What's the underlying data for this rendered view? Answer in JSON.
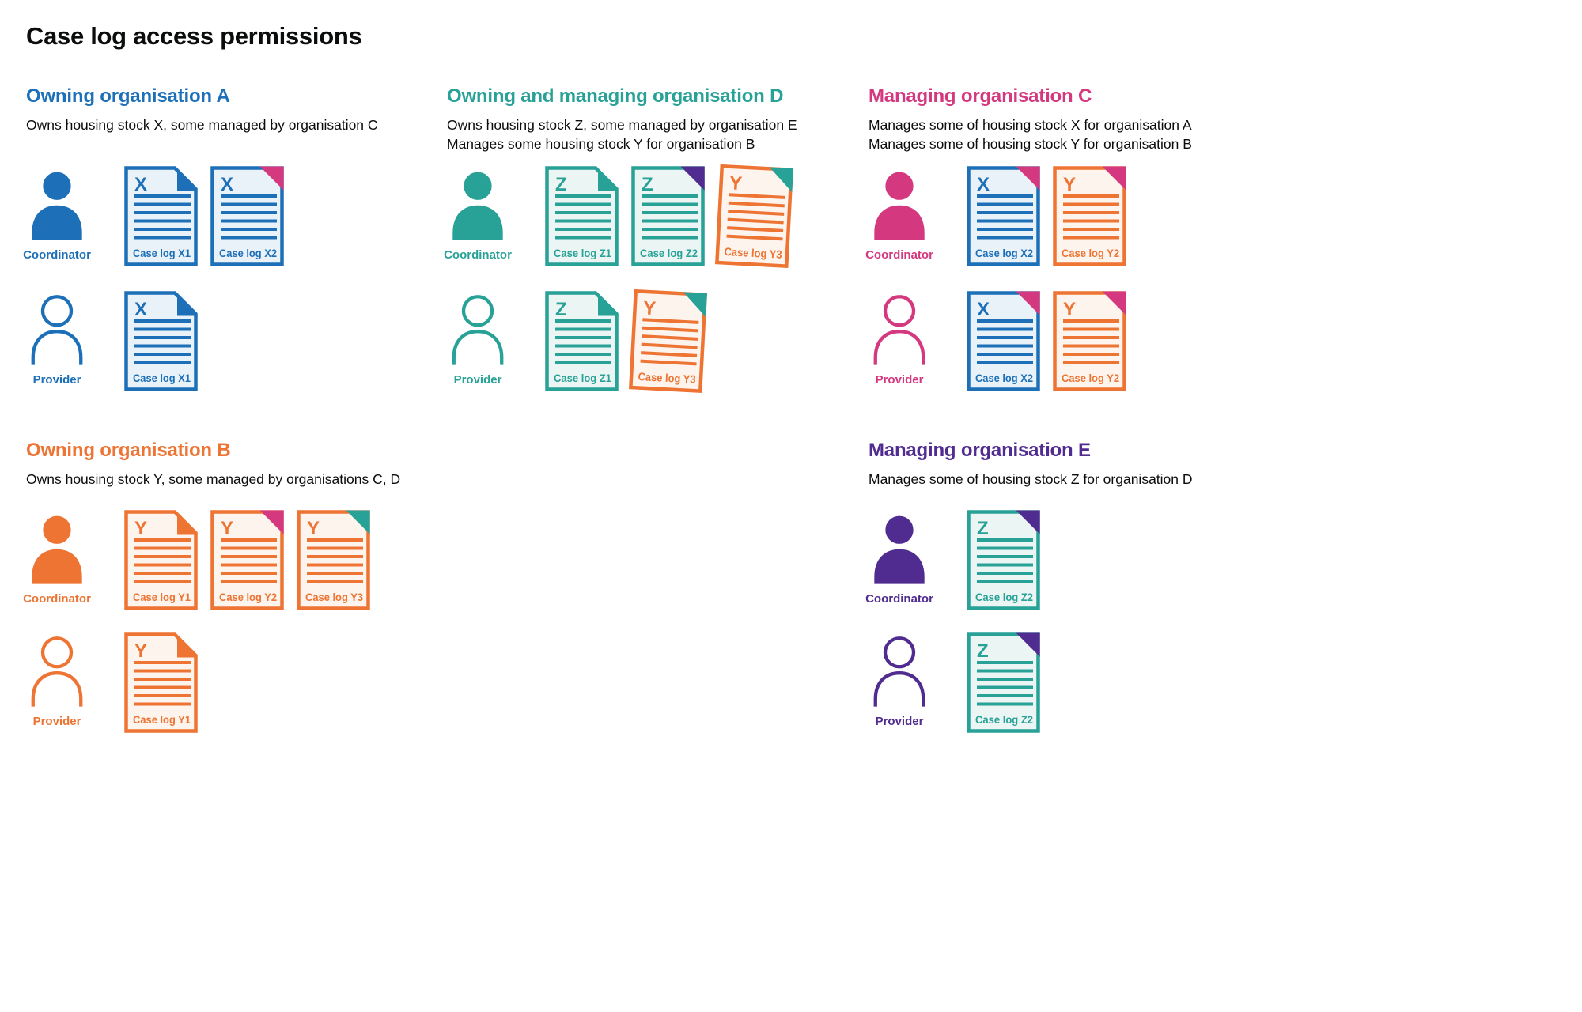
{
  "title": "Case log access permissions",
  "palette": {
    "blue": {
      "main": "#1d70b8",
      "tint": "#eaf2f9"
    },
    "teal": {
      "main": "#28a197",
      "tint": "#ebf5f3"
    },
    "orange": {
      "main": "#ee7434",
      "tint": "#fdf4ed"
    },
    "pink": {
      "main": "#d4387f",
      "tint": "#fbebf2"
    },
    "purple": {
      "main": "#512c90",
      "tint": "#eeeaf5"
    },
    "text": "#0b0c0c"
  },
  "sections": [
    {
      "id": "owning-organisation-a",
      "heading": "Owning organisation A",
      "color": "blue",
      "column": 0,
      "band": 0,
      "description_lines": [
        "Owns housing stock X, some managed by organisation C"
      ],
      "rows": [
        {
          "role": "Coordinator",
          "person": "solid",
          "docs": [
            {
              "letter": "X",
              "label": "Case log X1",
              "doc_color": "blue",
              "fold_color": "blue",
              "tilt": 0
            },
            {
              "letter": "X",
              "label": "Case log X2",
              "doc_color": "blue",
              "fold_color": "pink",
              "tilt": 0
            }
          ]
        },
        {
          "role": "Provider",
          "person": "outline",
          "docs": [
            {
              "letter": "X",
              "label": "Case log X1",
              "doc_color": "blue",
              "fold_color": "blue",
              "tilt": 0
            }
          ]
        }
      ]
    },
    {
      "id": "owning-and-managing-organisation-d",
      "heading": "Owning and managing organisation D",
      "color": "teal",
      "column": 1,
      "band": 0,
      "description_lines": [
        "Owns housing stock Z, some managed by organisation E",
        "Manages some housing stock Y for organisation B"
      ],
      "rows": [
        {
          "role": "Coordinator",
          "person": "solid",
          "docs": [
            {
              "letter": "Z",
              "label": "Case log Z1",
              "doc_color": "teal",
              "fold_color": "teal",
              "tilt": 0
            },
            {
              "letter": "Z",
              "label": "Case log Z2",
              "doc_color": "teal",
              "fold_color": "purple",
              "tilt": 0
            },
            {
              "letter": "Y",
              "label": "Case log Y3",
              "doc_color": "orange",
              "fold_color": "teal",
              "tilt": 3
            }
          ]
        },
        {
          "role": "Provider",
          "person": "outline",
          "docs": [
            {
              "letter": "Z",
              "label": "Case log Z1",
              "doc_color": "teal",
              "fold_color": "teal",
              "tilt": 0
            },
            {
              "letter": "Y",
              "label": "Case log Y3",
              "doc_color": "orange",
              "fold_color": "teal",
              "tilt": 3
            }
          ]
        }
      ]
    },
    {
      "id": "managing-organisation-c",
      "heading": "Managing organisation C",
      "color": "pink",
      "column": 2,
      "band": 0,
      "description_lines": [
        "Manages some of housing stock X for organisation A",
        "Manages some of housing stock Y for organisation B"
      ],
      "rows": [
        {
          "role": "Coordinator",
          "person": "solid",
          "docs": [
            {
              "letter": "X",
              "label": "Case log X2",
              "doc_color": "blue",
              "fold_color": "pink",
              "tilt": 0
            },
            {
              "letter": "Y",
              "label": "Case log Y2",
              "doc_color": "orange",
              "fold_color": "pink",
              "tilt": 0
            }
          ]
        },
        {
          "role": "Provider",
          "person": "outline",
          "docs": [
            {
              "letter": "X",
              "label": "Case log X2",
              "doc_color": "blue",
              "fold_color": "pink",
              "tilt": 0
            },
            {
              "letter": "Y",
              "label": "Case log Y2",
              "doc_color": "orange",
              "fold_color": "pink",
              "tilt": 0
            }
          ]
        }
      ]
    },
    {
      "id": "owning-organisation-b",
      "heading": "Owning organisation B",
      "color": "orange",
      "column": 0,
      "band": 1,
      "description_lines": [
        "Owns housing stock Y, some managed by organisations C, D"
      ],
      "rows": [
        {
          "role": "Coordinator",
          "person": "solid",
          "docs": [
            {
              "letter": "Y",
              "label": "Case log Y1",
              "doc_color": "orange",
              "fold_color": "orange",
              "tilt": 0
            },
            {
              "letter": "Y",
              "label": "Case log Y2",
              "doc_color": "orange",
              "fold_color": "pink",
              "tilt": 0
            },
            {
              "letter": "Y",
              "label": "Case log Y3",
              "doc_color": "orange",
              "fold_color": "teal",
              "tilt": 0
            }
          ]
        },
        {
          "role": "Provider",
          "person": "outline",
          "docs": [
            {
              "letter": "Y",
              "label": "Case log Y1",
              "doc_color": "orange",
              "fold_color": "orange",
              "tilt": 0
            }
          ]
        }
      ]
    },
    {
      "id": "managing-organisation-e",
      "heading": "Managing organisation E",
      "color": "purple",
      "column": 2,
      "band": 1,
      "description_lines": [
        "Manages some of housing stock Z for organisation D"
      ],
      "rows": [
        {
          "role": "Coordinator",
          "person": "solid",
          "docs": [
            {
              "letter": "Z",
              "label": "Case log Z2",
              "doc_color": "teal",
              "fold_color": "purple",
              "tilt": 0
            }
          ]
        },
        {
          "role": "Provider",
          "person": "outline",
          "docs": [
            {
              "letter": "Z",
              "label": "Case log Z2",
              "doc_color": "teal",
              "fold_color": "purple",
              "tilt": 0
            }
          ]
        }
      ]
    }
  ]
}
